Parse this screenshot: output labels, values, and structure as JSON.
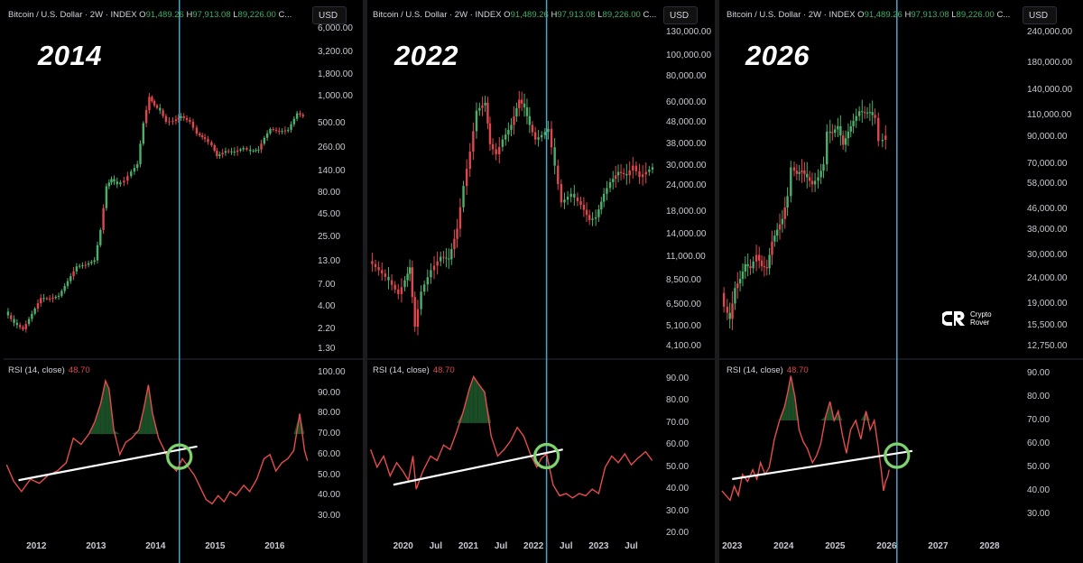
{
  "header": {
    "symbol": "Bitcoin / U.S. Dollar · 2W · INDEX",
    "o_label": "O",
    "o_value": "91,489.26",
    "h_label": "H",
    "h_value": "97,913.08",
    "l_label": "L",
    "l_value": "89,226.00",
    "c_label": "C..."
  },
  "currency_button": "USD",
  "rsi": {
    "label": "RSI (14, close)",
    "value": "48.70"
  },
  "watermark": {
    "name_line1": "Crypto",
    "name_line2": "Rover"
  },
  "colors": {
    "up": "#4caf6a",
    "down": "#e0474c",
    "rsi_line": "#e54c4c",
    "vline": "#4aa3c8",
    "circle": "#7ed36f"
  },
  "chart_data": [
    {
      "type": "candlestick",
      "title": "2014",
      "price_scale": "log",
      "price_ticks": [
        "6,000.00",
        "3,200.00",
        "1,800.00",
        "1,000.00",
        "500.00",
        "260.00",
        "140.00",
        "80.00",
        "45.00",
        "25.00",
        "13.00",
        "7.00",
        "4.00",
        "2.20",
        "1.30"
      ],
      "rsi_ticks": [
        "100.00",
        "90.00",
        "80.00",
        "70.00",
        "60.00",
        "50.00",
        "40.00",
        "30.00"
      ],
      "x_ticks": [
        "2012",
        "2013",
        "2014",
        "2015",
        "2016"
      ],
      "vertical_line_at": "2014.4",
      "close_series": [
        {
          "t": 2011.5,
          "p": 3.5
        },
        {
          "t": 2011.65,
          "p": 2.6
        },
        {
          "t": 2011.8,
          "p": 2.2
        },
        {
          "t": 2011.95,
          "p": 3.3
        },
        {
          "t": 2012.1,
          "p": 5.0
        },
        {
          "t": 2012.25,
          "p": 4.9
        },
        {
          "t": 2012.4,
          "p": 5.3
        },
        {
          "t": 2012.55,
          "p": 7.8
        },
        {
          "t": 2012.7,
          "p": 11.5
        },
        {
          "t": 2012.85,
          "p": 12
        },
        {
          "t": 2013.0,
          "p": 13.5
        },
        {
          "t": 2013.1,
          "p": 30
        },
        {
          "t": 2013.2,
          "p": 95
        },
        {
          "t": 2013.28,
          "p": 115
        },
        {
          "t": 2013.38,
          "p": 100
        },
        {
          "t": 2013.5,
          "p": 110
        },
        {
          "t": 2013.62,
          "p": 140
        },
        {
          "t": 2013.72,
          "p": 170
        },
        {
          "t": 2013.82,
          "p": 500
        },
        {
          "t": 2013.92,
          "p": 1000
        },
        {
          "t": 2014.0,
          "p": 800
        },
        {
          "t": 2014.1,
          "p": 700
        },
        {
          "t": 2014.2,
          "p": 520
        },
        {
          "t": 2014.32,
          "p": 530
        },
        {
          "t": 2014.45,
          "p": 600
        },
        {
          "t": 2014.6,
          "p": 520
        },
        {
          "t": 2014.72,
          "p": 380
        },
        {
          "t": 2014.85,
          "p": 330
        },
        {
          "t": 2014.97,
          "p": 280
        },
        {
          "t": 2015.05,
          "p": 210
        },
        {
          "t": 2015.2,
          "p": 240
        },
        {
          "t": 2015.35,
          "p": 235
        },
        {
          "t": 2015.5,
          "p": 260
        },
        {
          "t": 2015.62,
          "p": 240
        },
        {
          "t": 2015.75,
          "p": 250
        },
        {
          "t": 2015.85,
          "p": 340
        },
        {
          "t": 2015.95,
          "p": 430
        },
        {
          "t": 2016.1,
          "p": 400
        },
        {
          "t": 2016.25,
          "p": 420
        },
        {
          "t": 2016.4,
          "p": 650
        },
        {
          "t": 2016.5,
          "p": 600
        }
      ],
      "rsi_series": [
        {
          "t": 2011.5,
          "v": 55
        },
        {
          "t": 2011.62,
          "v": 47
        },
        {
          "t": 2011.75,
          "v": 42
        },
        {
          "t": 2011.9,
          "v": 48
        },
        {
          "t": 2012.05,
          "v": 46
        },
        {
          "t": 2012.2,
          "v": 50
        },
        {
          "t": 2012.35,
          "v": 52
        },
        {
          "t": 2012.5,
          "v": 56
        },
        {
          "t": 2012.62,
          "v": 68
        },
        {
          "t": 2012.75,
          "v": 65
        },
        {
          "t": 2012.88,
          "v": 70
        },
        {
          "t": 2012.98,
          "v": 76
        },
        {
          "t": 2013.08,
          "v": 85
        },
        {
          "t": 2013.16,
          "v": 96
        },
        {
          "t": 2013.22,
          "v": 92
        },
        {
          "t": 2013.3,
          "v": 72
        },
        {
          "t": 2013.4,
          "v": 60
        },
        {
          "t": 2013.5,
          "v": 66
        },
        {
          "t": 2013.6,
          "v": 68
        },
        {
          "t": 2013.72,
          "v": 72
        },
        {
          "t": 2013.8,
          "v": 82
        },
        {
          "t": 2013.88,
          "v": 94
        },
        {
          "t": 2013.95,
          "v": 80
        },
        {
          "t": 2014.05,
          "v": 68
        },
        {
          "t": 2014.15,
          "v": 62
        },
        {
          "t": 2014.25,
          "v": 55
        },
        {
          "t": 2014.35,
          "v": 52
        },
        {
          "t": 2014.45,
          "v": 58
        },
        {
          "t": 2014.55,
          "v": 54
        },
        {
          "t": 2014.65,
          "v": 50
        },
        {
          "t": 2014.75,
          "v": 44
        },
        {
          "t": 2014.85,
          "v": 38
        },
        {
          "t": 2014.95,
          "v": 36
        },
        {
          "t": 2015.05,
          "v": 40
        },
        {
          "t": 2015.15,
          "v": 37
        },
        {
          "t": 2015.25,
          "v": 42
        },
        {
          "t": 2015.35,
          "v": 40
        },
        {
          "t": 2015.48,
          "v": 45
        },
        {
          "t": 2015.58,
          "v": 42
        },
        {
          "t": 2015.7,
          "v": 48
        },
        {
          "t": 2015.82,
          "v": 58
        },
        {
          "t": 2015.92,
          "v": 60
        },
        {
          "t": 2016.02,
          "v": 52
        },
        {
          "t": 2016.12,
          "v": 56
        },
        {
          "t": 2016.22,
          "v": 58
        },
        {
          "t": 2016.32,
          "v": 62
        },
        {
          "t": 2016.42,
          "v": 80
        },
        {
          "t": 2016.5,
          "v": 62
        },
        {
          "t": 2016.55,
          "v": 57
        }
      ],
      "trendline": [
        {
          "t": 2011.7,
          "v": 47.5
        },
        {
          "t": 2014.7,
          "v": 64
        }
      ],
      "circle_at": {
        "t": 2014.4,
        "v": 59
      }
    },
    {
      "type": "candlestick",
      "title": "2022",
      "price_scale": "log",
      "price_ticks": [
        "130,000.00",
        "100,000.00",
        "80,000.00",
        "60,000.00",
        "48,000.00",
        "38,000.00",
        "30,000.00",
        "24,000.00",
        "18,000.00",
        "14,000.00",
        "11,000.00",
        "8,500.00",
        "6,500.00",
        "5,100.00",
        "4,100.00"
      ],
      "rsi_ticks": [
        "90.00",
        "80.00",
        "70.00",
        "60.00",
        "50.00",
        "40.00",
        "30.00",
        "20.00"
      ],
      "x_ticks": [
        "2020",
        "Jul",
        "2021",
        "Jul",
        "2022",
        "Jul",
        "2023",
        "Jul"
      ],
      "vertical_line_at": "2022.2",
      "close_series": [
        {
          "t": 2019.5,
          "p": 10500
        },
        {
          "t": 2019.65,
          "p": 9500
        },
        {
          "t": 2019.8,
          "p": 8500
        },
        {
          "t": 2019.95,
          "p": 7300
        },
        {
          "t": 2020.05,
          "p": 8500
        },
        {
          "t": 2020.12,
          "p": 9800
        },
        {
          "t": 2020.2,
          "p": 5100
        },
        {
          "t": 2020.3,
          "p": 7500
        },
        {
          "t": 2020.45,
          "p": 9500
        },
        {
          "t": 2020.6,
          "p": 11000
        },
        {
          "t": 2020.72,
          "p": 10700
        },
        {
          "t": 2020.85,
          "p": 15000
        },
        {
          "t": 2020.95,
          "p": 24000
        },
        {
          "t": 2021.05,
          "p": 35000
        },
        {
          "t": 2021.15,
          "p": 55000
        },
        {
          "t": 2021.28,
          "p": 60000
        },
        {
          "t": 2021.35,
          "p": 38000
        },
        {
          "t": 2021.45,
          "p": 34000
        },
        {
          "t": 2021.55,
          "p": 40000
        },
        {
          "t": 2021.68,
          "p": 47000
        },
        {
          "t": 2021.8,
          "p": 62000
        },
        {
          "t": 2021.88,
          "p": 57000
        },
        {
          "t": 2021.96,
          "p": 47000
        },
        {
          "t": 2022.05,
          "p": 40000
        },
        {
          "t": 2022.15,
          "p": 42000
        },
        {
          "t": 2022.25,
          "p": 45000
        },
        {
          "t": 2022.35,
          "p": 30000
        },
        {
          "t": 2022.45,
          "p": 20000
        },
        {
          "t": 2022.6,
          "p": 22000
        },
        {
          "t": 2022.75,
          "p": 19500
        },
        {
          "t": 2022.88,
          "p": 16500
        },
        {
          "t": 2022.98,
          "p": 17000
        },
        {
          "t": 2023.1,
          "p": 22000
        },
        {
          "t": 2023.2,
          "p": 25000
        },
        {
          "t": 2023.32,
          "p": 28000
        },
        {
          "t": 2023.45,
          "p": 27000
        },
        {
          "t": 2023.55,
          "p": 30000
        },
        {
          "t": 2023.65,
          "p": 26500
        },
        {
          "t": 2023.75,
          "p": 28000
        },
        {
          "t": 2023.85,
          "p": 29500
        }
      ],
      "rsi_series": [
        {
          "t": 2019.5,
          "v": 58
        },
        {
          "t": 2019.6,
          "v": 50
        },
        {
          "t": 2019.7,
          "v": 55
        },
        {
          "t": 2019.8,
          "v": 46
        },
        {
          "t": 2019.9,
          "v": 52
        },
        {
          "t": 2020.0,
          "v": 48
        },
        {
          "t": 2020.08,
          "v": 44
        },
        {
          "t": 2020.15,
          "v": 55
        },
        {
          "t": 2020.2,
          "v": 40
        },
        {
          "t": 2020.3,
          "v": 48
        },
        {
          "t": 2020.42,
          "v": 55
        },
        {
          "t": 2020.52,
          "v": 53
        },
        {
          "t": 2020.62,
          "v": 60
        },
        {
          "t": 2020.72,
          "v": 58
        },
        {
          "t": 2020.82,
          "v": 66
        },
        {
          "t": 2020.92,
          "v": 75
        },
        {
          "t": 2021.02,
          "v": 86
        },
        {
          "t": 2021.08,
          "v": 91
        },
        {
          "t": 2021.15,
          "v": 88
        },
        {
          "t": 2021.25,
          "v": 84
        },
        {
          "t": 2021.35,
          "v": 64
        },
        {
          "t": 2021.45,
          "v": 55
        },
        {
          "t": 2021.55,
          "v": 58
        },
        {
          "t": 2021.65,
          "v": 62
        },
        {
          "t": 2021.75,
          "v": 68
        },
        {
          "t": 2021.85,
          "v": 64
        },
        {
          "t": 2021.95,
          "v": 56
        },
        {
          "t": 2022.05,
          "v": 50
        },
        {
          "t": 2022.12,
          "v": 54
        },
        {
          "t": 2022.2,
          "v": 56
        },
        {
          "t": 2022.3,
          "v": 42
        },
        {
          "t": 2022.4,
          "v": 37
        },
        {
          "t": 2022.5,
          "v": 38
        },
        {
          "t": 2022.6,
          "v": 36
        },
        {
          "t": 2022.7,
          "v": 38
        },
        {
          "t": 2022.8,
          "v": 37
        },
        {
          "t": 2022.9,
          "v": 40
        },
        {
          "t": 2023.0,
          "v": 38
        },
        {
          "t": 2023.1,
          "v": 50
        },
        {
          "t": 2023.2,
          "v": 55
        },
        {
          "t": 2023.3,
          "v": 52
        },
        {
          "t": 2023.4,
          "v": 56
        },
        {
          "t": 2023.5,
          "v": 51
        },
        {
          "t": 2023.6,
          "v": 54
        },
        {
          "t": 2023.72,
          "v": 57
        },
        {
          "t": 2023.82,
          "v": 53
        }
      ],
      "trendline": [
        {
          "t": 2019.85,
          "v": 42
        },
        {
          "t": 2022.45,
          "v": 58
        }
      ],
      "circle_at": {
        "t": 2022.2,
        "v": 55
      }
    },
    {
      "type": "candlestick",
      "title": "2026",
      "price_scale": "log",
      "price_ticks": [
        "240,000.00",
        "180,000.00",
        "140,000.00",
        "110,000.00",
        "90,000.00",
        "70,000.00",
        "58,000.00",
        "46,000.00",
        "38,000.00",
        "30,000.00",
        "24,000.00",
        "19,000.00",
        "15,500.00",
        "12,750.00"
      ],
      "rsi_ticks": [
        "90.00",
        "80.00",
        "70.00",
        "60.00",
        "50.00",
        "40.00",
        "30.00"
      ],
      "x_ticks": [
        "2023",
        "2024",
        "2025",
        "2026",
        "2027",
        "2028"
      ],
      "vertical_line_at": "2026.2",
      "close_series": [
        {
          "t": 2022.8,
          "p": 21000
        },
        {
          "t": 2022.88,
          "p": 18500
        },
        {
          "t": 2022.98,
          "p": 16500
        },
        {
          "t": 2023.08,
          "p": 22000
        },
        {
          "t": 2023.18,
          "p": 24000
        },
        {
          "t": 2023.28,
          "p": 27500
        },
        {
          "t": 2023.38,
          "p": 26500
        },
        {
          "t": 2023.5,
          "p": 30000
        },
        {
          "t": 2023.6,
          "p": 27000
        },
        {
          "t": 2023.7,
          "p": 26500
        },
        {
          "t": 2023.8,
          "p": 34000
        },
        {
          "t": 2023.9,
          "p": 38000
        },
        {
          "t": 2024.0,
          "p": 42000
        },
        {
          "t": 2024.1,
          "p": 52000
        },
        {
          "t": 2024.18,
          "p": 68000
        },
        {
          "t": 2024.28,
          "p": 64000
        },
        {
          "t": 2024.38,
          "p": 66000
        },
        {
          "t": 2024.48,
          "p": 62000
        },
        {
          "t": 2024.58,
          "p": 58000
        },
        {
          "t": 2024.7,
          "p": 62000
        },
        {
          "t": 2024.8,
          "p": 70000
        },
        {
          "t": 2024.88,
          "p": 95000
        },
        {
          "t": 2024.97,
          "p": 94000
        },
        {
          "t": 2025.08,
          "p": 100000
        },
        {
          "t": 2025.18,
          "p": 84000
        },
        {
          "t": 2025.28,
          "p": 95000
        },
        {
          "t": 2025.38,
          "p": 105000
        },
        {
          "t": 2025.5,
          "p": 115000
        },
        {
          "t": 2025.6,
          "p": 113000
        },
        {
          "t": 2025.7,
          "p": 114000
        },
        {
          "t": 2025.8,
          "p": 108000
        },
        {
          "t": 2025.88,
          "p": 87000
        },
        {
          "t": 2025.96,
          "p": 88000
        },
        {
          "t": 2026.0,
          "p": 91500
        }
      ],
      "rsi_series": [
        {
          "t": 2022.8,
          "v": 40
        },
        {
          "t": 2022.88,
          "v": 38
        },
        {
          "t": 2022.96,
          "v": 36
        },
        {
          "t": 2023.04,
          "v": 42
        },
        {
          "t": 2023.12,
          "v": 38
        },
        {
          "t": 2023.2,
          "v": 47
        },
        {
          "t": 2023.3,
          "v": 44
        },
        {
          "t": 2023.4,
          "v": 49
        },
        {
          "t": 2023.48,
          "v": 45
        },
        {
          "t": 2023.55,
          "v": 52
        },
        {
          "t": 2023.64,
          "v": 47
        },
        {
          "t": 2023.72,
          "v": 50
        },
        {
          "t": 2023.82,
          "v": 62
        },
        {
          "t": 2023.92,
          "v": 70
        },
        {
          "t": 2024.02,
          "v": 76
        },
        {
          "t": 2024.08,
          "v": 82
        },
        {
          "t": 2024.14,
          "v": 89
        },
        {
          "t": 2024.22,
          "v": 80
        },
        {
          "t": 2024.3,
          "v": 66
        },
        {
          "t": 2024.38,
          "v": 61
        },
        {
          "t": 2024.46,
          "v": 58
        },
        {
          "t": 2024.56,
          "v": 52
        },
        {
          "t": 2024.64,
          "v": 55
        },
        {
          "t": 2024.72,
          "v": 60
        },
        {
          "t": 2024.82,
          "v": 72
        },
        {
          "t": 2024.9,
          "v": 78
        },
        {
          "t": 2024.98,
          "v": 70
        },
        {
          "t": 2025.06,
          "v": 74
        },
        {
          "t": 2025.14,
          "v": 64
        },
        {
          "t": 2025.22,
          "v": 56
        },
        {
          "t": 2025.3,
          "v": 66
        },
        {
          "t": 2025.4,
          "v": 70
        },
        {
          "t": 2025.5,
          "v": 62
        },
        {
          "t": 2025.6,
          "v": 74
        },
        {
          "t": 2025.68,
          "v": 66
        },
        {
          "t": 2025.76,
          "v": 70
        },
        {
          "t": 2025.84,
          "v": 58
        },
        {
          "t": 2025.9,
          "v": 48
        },
        {
          "t": 2025.94,
          "v": 40
        },
        {
          "t": 2025.98,
          "v": 44
        },
        {
          "t": 2026.02,
          "v": 46
        },
        {
          "t": 2026.05,
          "v": 49
        }
      ],
      "trendline": [
        {
          "t": 2023.0,
          "v": 45
        },
        {
          "t": 2026.5,
          "v": 57
        }
      ],
      "circle_at": {
        "t": 2026.2,
        "v": 55
      }
    }
  ]
}
